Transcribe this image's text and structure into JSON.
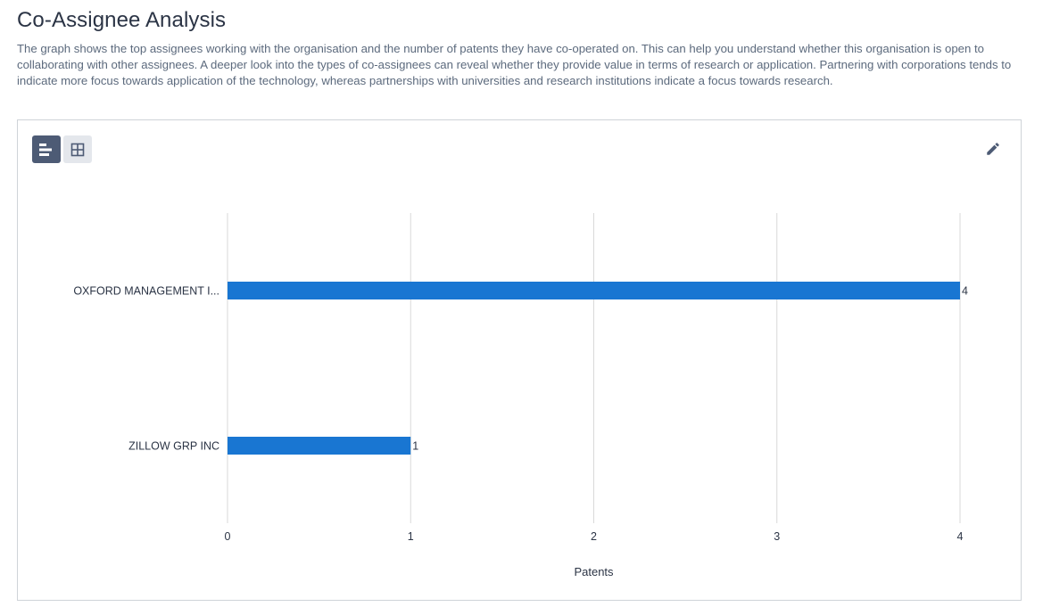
{
  "page": {
    "title": "Co-Assignee Analysis",
    "description": "The graph shows the top assignees working with the organisation and the number of patents they have co-operated on. This can help you understand whether this organisation is open to collaborating with other assignees. A deeper look into the types of co-assignees can reveal whether they provide value in terms of research or application. Partnering with corporations tends to indicate more focus towards application of the technology, whereas partnerships with universities and research institutions indicate a focus towards research."
  },
  "toolbar": {
    "chart_view_icon": "horizontal-bar-chart-icon",
    "table_view_icon": "grid-table-icon",
    "edit_icon": "pencil-icon"
  },
  "colors": {
    "bar": "#1976d2",
    "active_toggle": "#4d5b75",
    "inactive_toggle": "#e4e7ec",
    "gridline": "#d9d9d9"
  },
  "chart_data": {
    "type": "bar",
    "orientation": "horizontal",
    "categories": [
      "OXFORD MANAGEMENT I...",
      "ZILLOW GRP INC"
    ],
    "values": [
      4,
      1
    ],
    "data_labels": [
      "4",
      "1"
    ],
    "xlabel": "Patents",
    "ylabel": "",
    "xlim": [
      0,
      4
    ],
    "x_ticks": [
      "0",
      "1",
      "2",
      "3",
      "4"
    ],
    "grid": true
  }
}
